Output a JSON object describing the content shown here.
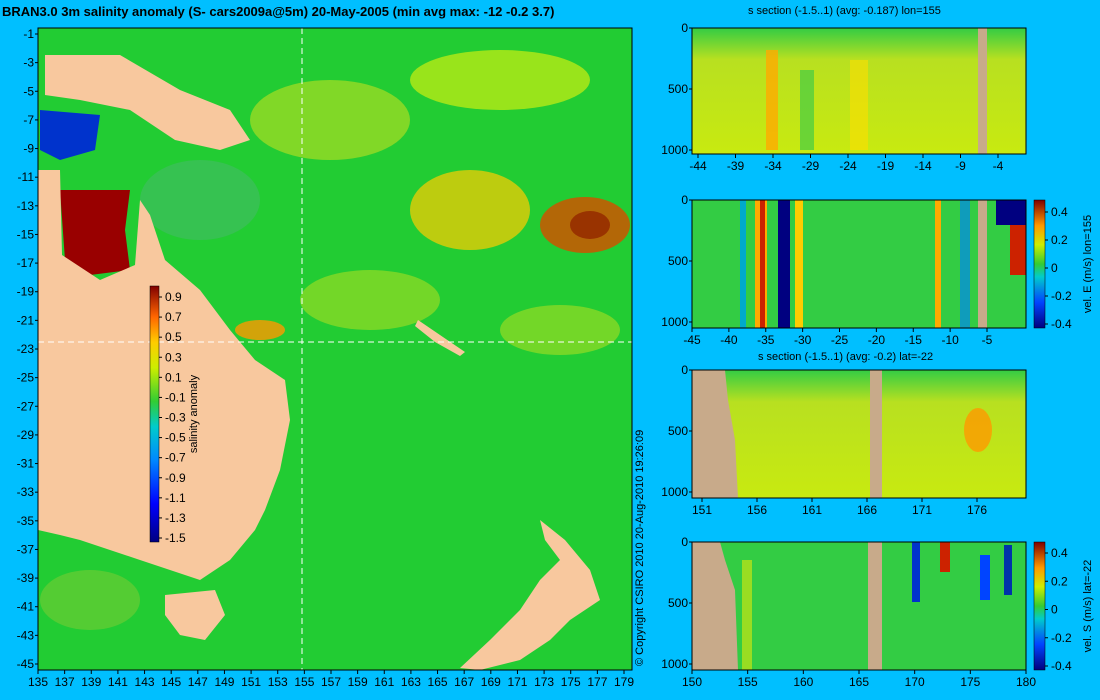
{
  "main_title": "BRAN3.0 3m salinity anomaly (S- cars2009a@5m) 20-May-2005 (min avg max: -12 -0.2 3.7)",
  "copyright": "© Copyright CSIRO 2010   20-Aug-2010 19:26:09",
  "colors": {
    "background": "#00bfff",
    "land": "#f8c89e",
    "section_land": "#c8aa8a",
    "ocean_base": "#22cc33"
  },
  "chart_data": [
    {
      "type": "heatmap",
      "name": "map",
      "x_ticks": [
        "135",
        "137",
        "139",
        "141",
        "143",
        "145",
        "147",
        "149",
        "151",
        "153",
        "155",
        "157",
        "159",
        "161",
        "163",
        "165",
        "167",
        "169",
        "171",
        "173",
        "175",
        "177",
        "179"
      ],
      "y_ticks": [
        "-1",
        "-3",
        "-5",
        "-7",
        "-9",
        "-11",
        "-13",
        "-15",
        "-17",
        "-19",
        "-21",
        "-23",
        "-25",
        "-27",
        "-29",
        "-31",
        "-33",
        "-35",
        "-37",
        "-39",
        "-41",
        "-43",
        "-45"
      ],
      "xlim": [
        135,
        180
      ],
      "ylim": [
        -45,
        0
      ],
      "crosshair": {
        "lon": 155,
        "lat": -22
      },
      "colorbar": {
        "label": "salinity anomaly",
        "ticks": [
          "0.9",
          "0.7",
          "0.5",
          "0.3",
          "0.1",
          "-0.1",
          "-0.3",
          "-0.5",
          "-0.7",
          "-0.9",
          "-1.1",
          "-1.3",
          "-1.5"
        ]
      }
    },
    {
      "type": "heatmap",
      "name": "s-section-lon155",
      "title": "s section (-1.5..1) (avg: -0.187) lon=155",
      "x_ticks": [
        "-44",
        "-39",
        "-34",
        "-29",
        "-24",
        "-19",
        "-14",
        "-9",
        "-4"
      ],
      "y_ticks": [
        "0",
        "500",
        "1000"
      ]
    },
    {
      "type": "heatmap",
      "name": "vel-e-section-lon155",
      "x_ticks": [
        "-45",
        "-40",
        "-35",
        "-30",
        "-25",
        "-20",
        "-15",
        "-10",
        "-5"
      ],
      "y_ticks": [
        "0",
        "500",
        "1000"
      ],
      "colorbar": {
        "label": "vel. E (m/s) lon=155",
        "ticks": [
          "0.4",
          "0.2",
          "0",
          "-0.2",
          "-0.4"
        ]
      }
    },
    {
      "type": "heatmap",
      "name": "s-section-lat-22",
      "title": "s section (-1.5..1) (avg: -0.2) lat=-22",
      "x_ticks": [
        "151",
        "156",
        "161",
        "166",
        "171",
        "176"
      ],
      "y_ticks": [
        "0",
        "500",
        "1000"
      ]
    },
    {
      "type": "heatmap",
      "name": "vel-s-section-lat-22",
      "x_ticks": [
        "150",
        "155",
        "160",
        "165",
        "170",
        "175",
        "180"
      ],
      "y_ticks": [
        "0",
        "500",
        "1000"
      ],
      "colorbar": {
        "label": "vel. S (m/s) lat=-22",
        "ticks": [
          "0.4",
          "0.2",
          "0",
          "-0.2",
          "-0.4"
        ]
      }
    }
  ]
}
